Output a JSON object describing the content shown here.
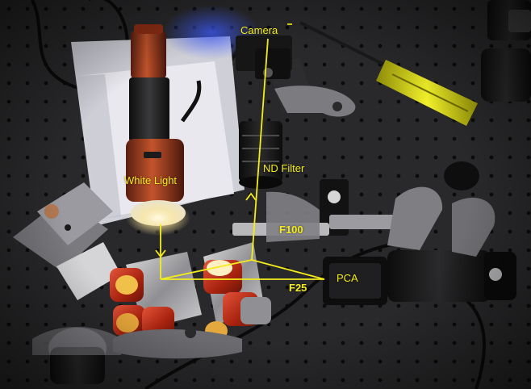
{
  "labels": {
    "camera": "Camera",
    "white_light": "White Light",
    "nd_filter": "ND Filter",
    "f100": "F100",
    "pca": "PCA",
    "f25": "F25"
  },
  "colors": {
    "annotation": "#f4ec1c",
    "table": "#262628",
    "hole": "#0b0b0c",
    "flashlight": "#b8482a",
    "mount_red": "#c2311c",
    "screwdriver": "#e8e61a"
  },
  "icons": {
    "beam_arrow": "arrowhead"
  }
}
